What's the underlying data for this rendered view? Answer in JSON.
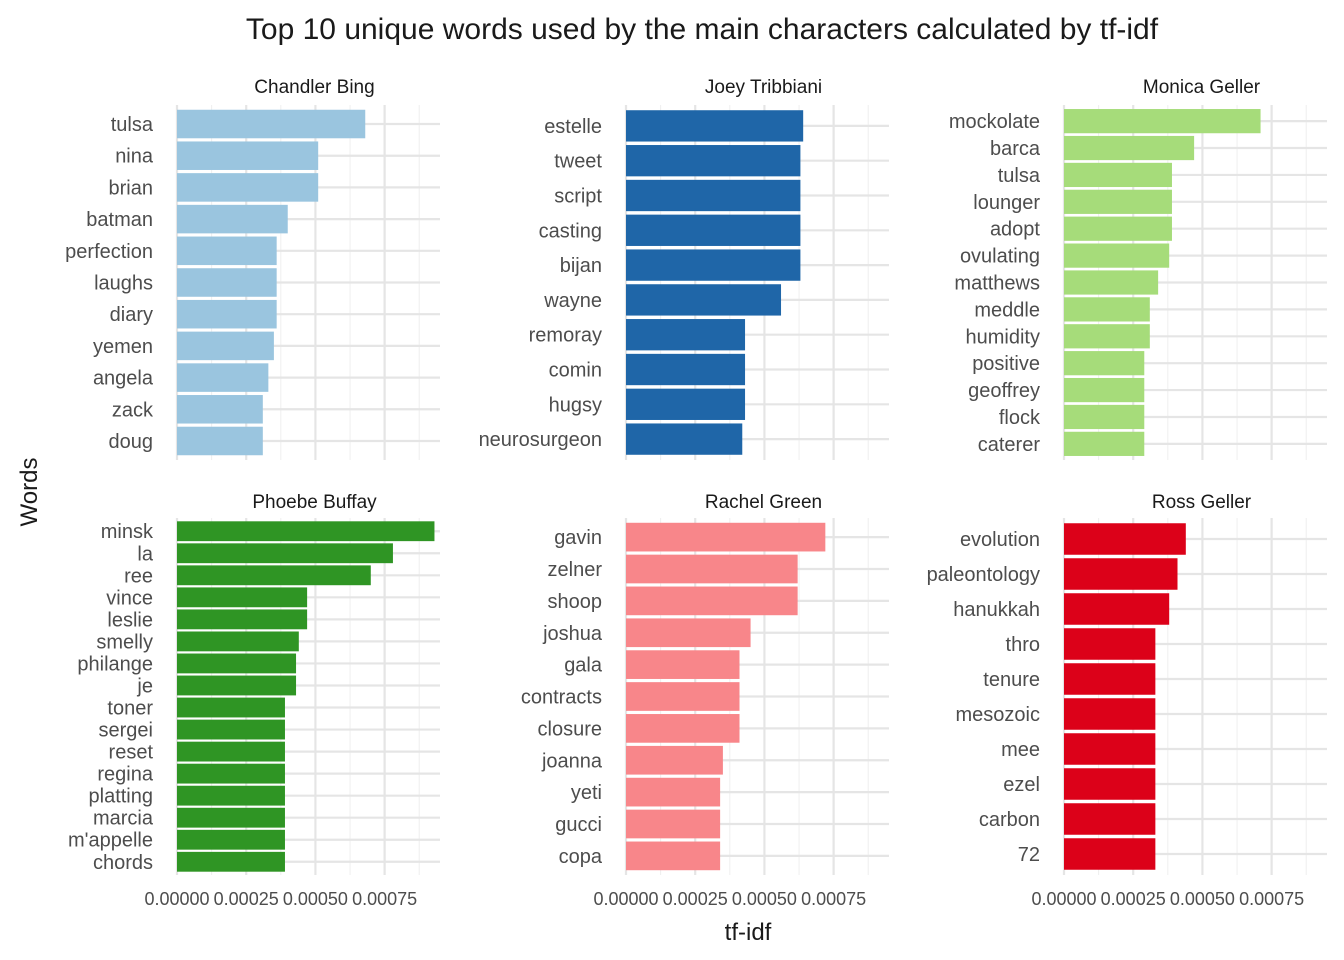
{
  "chart_data": {
    "type": "bar",
    "orientation": "horizontal",
    "title": "Top 10 unique words used by the main characters calculated by tf-idf",
    "xlabel": "tf-idf",
    "ylabel": "Words",
    "xlim": [
      0,
      0.00095
    ],
    "x_ticks": [
      0,
      0.00025,
      0.0005,
      0.00075
    ],
    "x_tick_labels": [
      "0.00000",
      "0.00025",
      "0.00050",
      "0.00075"
    ],
    "grid": true,
    "legend": "none",
    "facets": [
      {
        "name": "Chandler Bing",
        "color": "#9ac5df",
        "categories": [
          "tulsa",
          "nina",
          "brian",
          "batman",
          "perfection",
          "laughs",
          "diary",
          "yemen",
          "angela",
          "zack",
          "doug"
        ],
        "values": [
          0.00068,
          0.00051,
          0.00051,
          0.0004,
          0.00036,
          0.00036,
          0.00036,
          0.00035,
          0.00033,
          0.00031,
          0.00031
        ]
      },
      {
        "name": "Joey Tribbiani",
        "color": "#1f66a8",
        "categories": [
          "estelle",
          "tweet",
          "script",
          "casting",
          "bijan",
          "wayne",
          "remoray",
          "comin",
          "hugsy",
          "neurosurgeon"
        ],
        "values": [
          0.00064,
          0.00063,
          0.00063,
          0.00063,
          0.00063,
          0.00056,
          0.00043,
          0.00043,
          0.00043,
          0.00042
        ]
      },
      {
        "name": "Monica Geller",
        "color": "#a6dc7a",
        "categories": [
          "mockolate",
          "barca",
          "tulsa",
          "lounger",
          "adopt",
          "ovulating",
          "matthews",
          "meddle",
          "humidity",
          "positive",
          "geoffrey",
          "flock",
          "caterer"
        ],
        "values": [
          0.00071,
          0.00047,
          0.00039,
          0.00039,
          0.00039,
          0.00038,
          0.00034,
          0.00031,
          0.00031,
          0.00029,
          0.00029,
          0.00029,
          0.00029
        ]
      },
      {
        "name": "Phoebe Buffay",
        "color": "#2f9524",
        "categories": [
          "minsk",
          "la",
          "ree",
          "vince",
          "leslie",
          "smelly",
          "philange",
          "je",
          "toner",
          "sergei",
          "reset",
          "regina",
          "platting",
          "marcia",
          "m'appelle",
          "chords"
        ],
        "values": [
          0.00093,
          0.00078,
          0.0007,
          0.00047,
          0.00047,
          0.00044,
          0.00043,
          0.00043,
          0.00039,
          0.00039,
          0.00039,
          0.00039,
          0.00039,
          0.00039,
          0.00039,
          0.00039
        ]
      },
      {
        "name": "Rachel Green",
        "color": "#f8868a",
        "categories": [
          "gavin",
          "zelner",
          "shoop",
          "joshua",
          "gala",
          "contracts",
          "closure",
          "joanna",
          "yeti",
          "gucci",
          "copa"
        ],
        "values": [
          0.00072,
          0.00062,
          0.00062,
          0.00045,
          0.00041,
          0.00041,
          0.00041,
          0.00035,
          0.00034,
          0.00034,
          0.00034
        ]
      },
      {
        "name": "Ross Geller",
        "color": "#dc0119",
        "categories": [
          "evolution",
          "paleontology",
          "hanukkah",
          "thro",
          "tenure",
          "mesozoic",
          "mee",
          "ezel",
          "carbon",
          "72"
        ],
        "values": [
          0.00044,
          0.00041,
          0.00038,
          0.00033,
          0.00033,
          0.00033,
          0.00033,
          0.00033,
          0.00033,
          0.00033
        ]
      }
    ]
  }
}
